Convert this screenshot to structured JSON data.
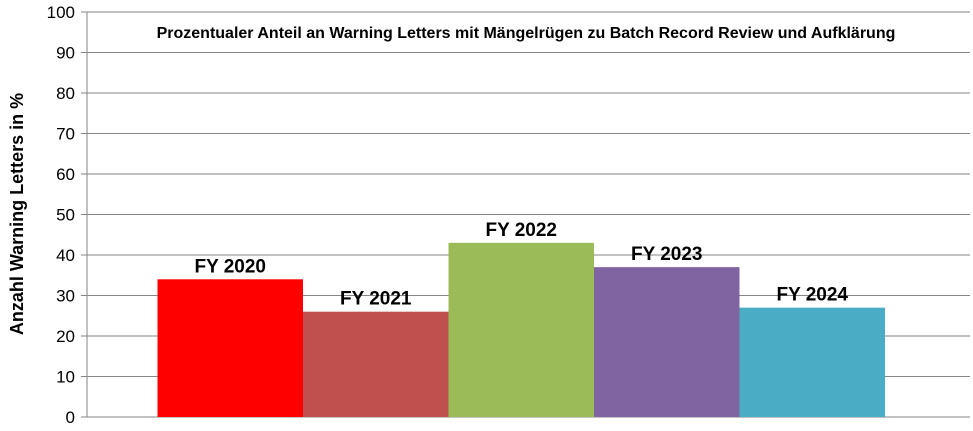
{
  "chart_data": {
    "type": "bar",
    "title": "Prozentualer Anteil an Warning Letters mit Mängelrügen zu Batch Record Review und Aufklärung",
    "xlabel": "",
    "ylabel": "Anzahl Warning Letters in %",
    "ylim": [
      0,
      100
    ],
    "yticks": [
      "0",
      "10",
      "20",
      "30",
      "40",
      "50",
      "60",
      "70",
      "80",
      "90",
      "100"
    ],
    "grid": true,
    "legend": "none",
    "categories": [
      "FY 2020",
      "FY 2021",
      "FY 2022",
      "FY 2023",
      "FY 2024"
    ],
    "values": [
      34,
      26,
      43,
      37,
      27
    ],
    "colors": [
      "#ff0000",
      "#c0504d",
      "#9bbb59",
      "#8064a2",
      "#4bacc6"
    ]
  }
}
